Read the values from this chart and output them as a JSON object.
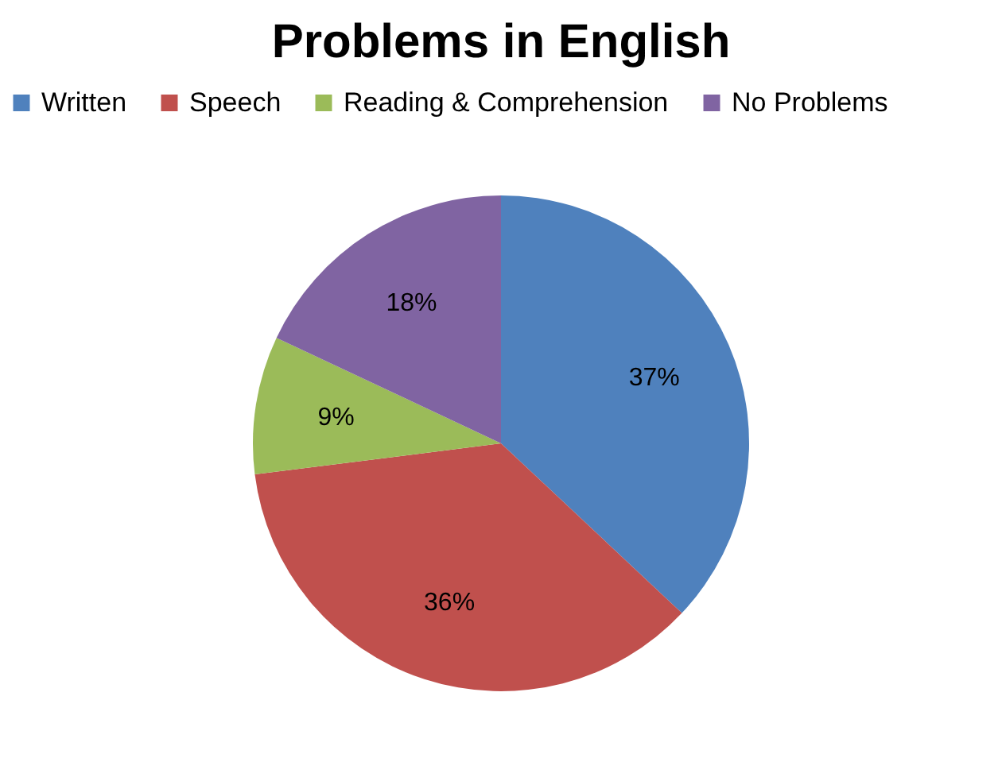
{
  "chart_data": {
    "type": "pie",
    "title": "Problems in English",
    "categories": [
      "Written",
      "Speech",
      "Reading & Comprehension",
      "No Problems"
    ],
    "values": [
      37,
      36,
      9,
      18
    ],
    "colors": [
      "#4f81bd",
      "#c0504d",
      "#9bbb59",
      "#8064a2"
    ],
    "value_labels": [
      "37%",
      "36%",
      "9%",
      "18%"
    ],
    "legend": "top"
  }
}
